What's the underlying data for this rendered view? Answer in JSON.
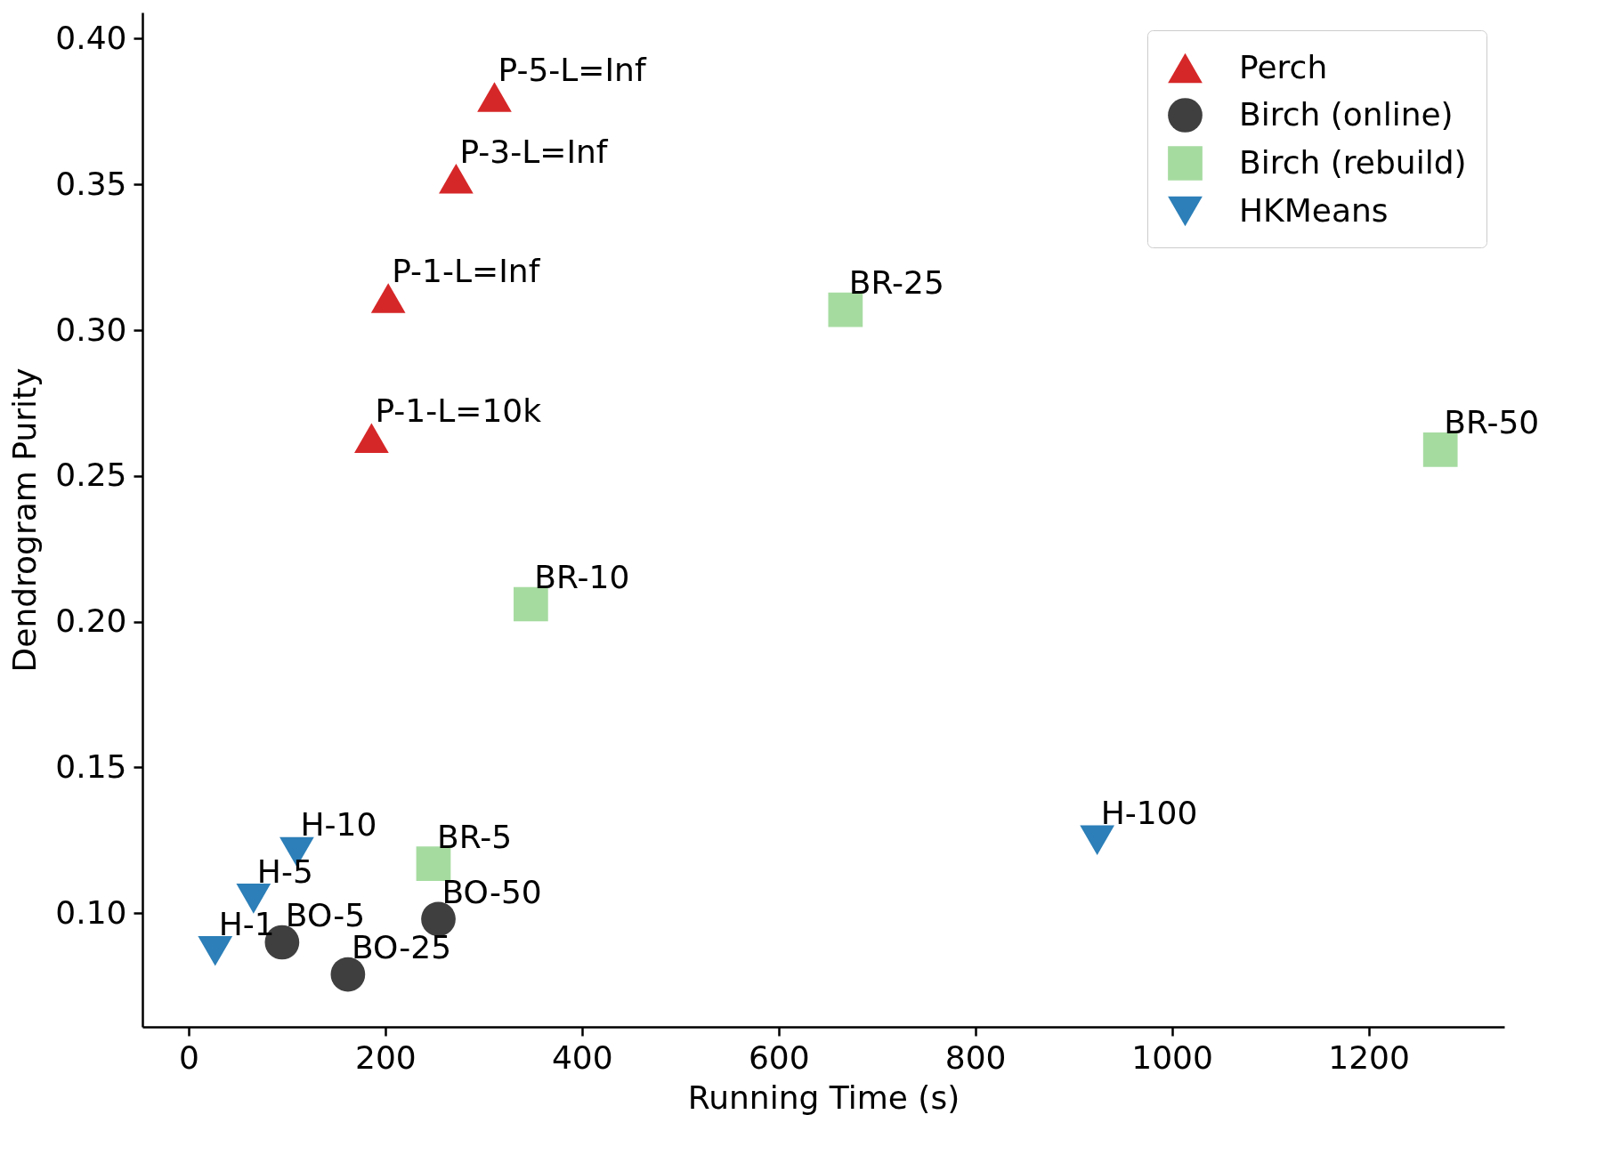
{
  "chart_data": {
    "type": "scatter",
    "xlabel": "Running Time (s)",
    "ylabel": "Dendrogram Purity",
    "xlim": [
      -47,
      1338
    ],
    "ylim": [
      0.061,
      0.409
    ],
    "xticks": [
      0,
      200,
      400,
      600,
      800,
      1000,
      1200
    ],
    "yticks": [
      {
        "value": 0.1,
        "label": "0.10"
      },
      0.15,
      {
        "value": 0.2,
        "label": "0.20"
      },
      0.25,
      {
        "value": 0.3,
        "label": "0.30"
      },
      0.35,
      {
        "value": 0.4,
        "label": "0.40"
      }
    ],
    "grid": false,
    "legend": "top right",
    "series": [
      {
        "name": "Perch",
        "color": "#d62728",
        "marker": "triangle",
        "x": [
          311,
          272,
          203,
          186
        ],
        "values": [
          0.38,
          0.352,
          0.311,
          0.263
        ]
      },
      {
        "name": "Birch (online)",
        "color": "#3f3f3f",
        "marker": "circle",
        "x": [
          95,
          162,
          254
        ],
        "values": [
          0.09,
          0.079,
          0.098
        ]
      },
      {
        "name": "Birch (rebuild)",
        "color": "#a6dba0",
        "marker": "square",
        "x": [
          249,
          348,
          668,
          1273
        ],
        "values": [
          0.117,
          0.206,
          0.307,
          0.259
        ]
      },
      {
        "name": "HKMeans",
        "color": "#2c7fb8",
        "marker": "triangle-down",
        "x": [
          27,
          66,
          110,
          924
        ],
        "values": [
          0.087,
          0.105,
          0.121,
          0.125
        ]
      }
    ],
    "annotations": [
      {
        "text": "P-5-L=Inf",
        "x": 311,
        "y": 0.38
      },
      {
        "text": "P-3-L=Inf",
        "x": 272,
        "y": 0.352
      },
      {
        "text": "P-1-L=Inf",
        "x": 203,
        "y": 0.311
      },
      {
        "text": "P-1-L=10k",
        "x": 186,
        "y": 0.263
      },
      {
        "text": "BO-5",
        "x": 95,
        "y": 0.09
      },
      {
        "text": "BO-25",
        "x": 162,
        "y": 0.079
      },
      {
        "text": "BO-50",
        "x": 254,
        "y": 0.098
      },
      {
        "text": "BR-5",
        "x": 249,
        "y": 0.117
      },
      {
        "text": "BR-10",
        "x": 348,
        "y": 0.206
      },
      {
        "text": "BR-25",
        "x": 668,
        "y": 0.307
      },
      {
        "text": "BR-50",
        "x": 1273,
        "y": 0.259
      },
      {
        "text": "H-1",
        "x": 27,
        "y": 0.087
      },
      {
        "text": "H-5",
        "x": 66,
        "y": 0.105
      },
      {
        "text": "H-10",
        "x": 110,
        "y": 0.121
      },
      {
        "text": "H-100",
        "x": 924,
        "y": 0.125
      }
    ]
  }
}
